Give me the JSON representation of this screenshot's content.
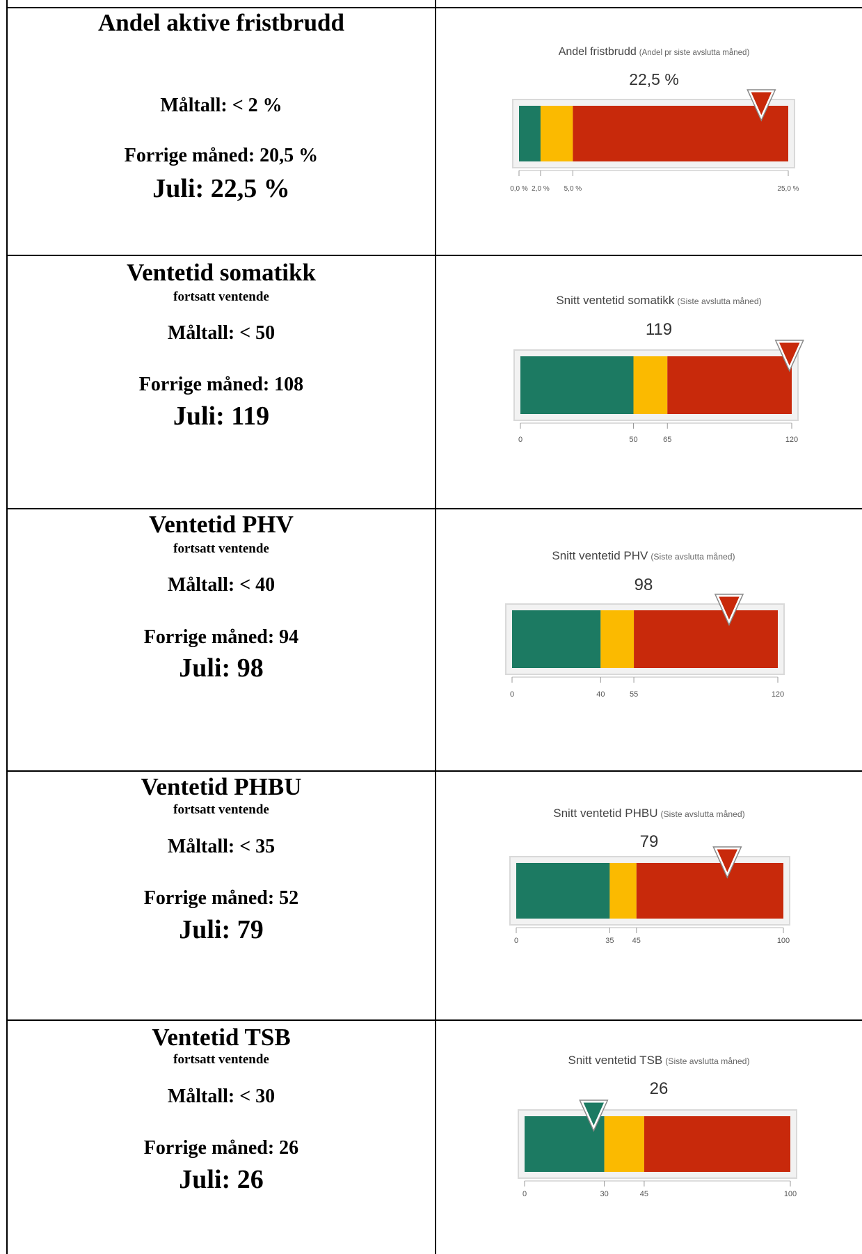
{
  "colors": {
    "green": "#1c7a62",
    "yellow": "#fbba00",
    "red": "#c8290b",
    "frame": "#d9d9d9",
    "axis": "#555555"
  },
  "panels": [
    {
      "left": {
        "title": "Andel aktive fristbrudd",
        "subtitle": "",
        "target": "Måltall: < 2 %",
        "previous": "Forrige måned: 20,5 %",
        "current": "Juli: 22,5 %"
      },
      "chart_data": {
        "type": "bullet-gauge",
        "title": "Andel fristbrudd",
        "subtitle": "(Andel pr siste avslutta måned)",
        "value": 22.5,
        "value_label": "22,5 %",
        "range": [
          0,
          25
        ],
        "bands": [
          {
            "from": 0,
            "to": 2,
            "color": "green"
          },
          {
            "from": 2,
            "to": 5,
            "color": "yellow"
          },
          {
            "from": 5,
            "to": 25,
            "color": "red"
          }
        ],
        "ticks": [
          {
            "value": 0,
            "label": "0,0 %"
          },
          {
            "value": 2,
            "label": "2,0 %"
          },
          {
            "value": 5,
            "label": "5,0 %"
          },
          {
            "value": 25,
            "label": "25,0 %"
          }
        ],
        "marker_color": "red"
      }
    },
    {
      "left": {
        "title": "Ventetid somatikk",
        "subtitle": "fortsatt ventende",
        "target": "Måltall: < 50",
        "previous": "Forrige måned: 108",
        "current": "Juli: 119"
      },
      "chart_data": {
        "type": "bullet-gauge",
        "title": "Snitt ventetid somatikk",
        "subtitle": "(Siste avslutta måned)",
        "value": 119,
        "value_label": "119",
        "range": [
          0,
          120
        ],
        "bands": [
          {
            "from": 0,
            "to": 50,
            "color": "green"
          },
          {
            "from": 50,
            "to": 65,
            "color": "yellow"
          },
          {
            "from": 65,
            "to": 120,
            "color": "red"
          }
        ],
        "ticks": [
          {
            "value": 0,
            "label": "0"
          },
          {
            "value": 50,
            "label": "50"
          },
          {
            "value": 65,
            "label": "65"
          },
          {
            "value": 120,
            "label": "120"
          }
        ],
        "marker_color": "red"
      }
    },
    {
      "left": {
        "title": "Ventetid PHV",
        "subtitle": "fortsatt ventende",
        "target": "Måltall: < 40",
        "previous": "Forrige måned: 94",
        "current": "Juli: 98"
      },
      "chart_data": {
        "type": "bullet-gauge",
        "title": "Snitt ventetid PHV",
        "subtitle": "(Siste avslutta måned)",
        "value": 98,
        "value_label": "98",
        "range": [
          0,
          120
        ],
        "bands": [
          {
            "from": 0,
            "to": 40,
            "color": "green"
          },
          {
            "from": 40,
            "to": 55,
            "color": "yellow"
          },
          {
            "from": 55,
            "to": 120,
            "color": "red"
          }
        ],
        "ticks": [
          {
            "value": 0,
            "label": "0"
          },
          {
            "value": 40,
            "label": "40"
          },
          {
            "value": 55,
            "label": "55"
          },
          {
            "value": 120,
            "label": "120"
          }
        ],
        "marker_color": "red"
      }
    },
    {
      "left": {
        "title": "Ventetid PHBU",
        "subtitle": "fortsatt ventende",
        "target": "Måltall: < 35",
        "previous": "Forrige måned: 52",
        "current": "Juli: 79"
      },
      "chart_data": {
        "type": "bullet-gauge",
        "title": "Snitt ventetid PHBU",
        "subtitle": "(Siste avslutta måned)",
        "value": 79,
        "value_label": "79",
        "range": [
          0,
          100
        ],
        "bands": [
          {
            "from": 0,
            "to": 35,
            "color": "green"
          },
          {
            "from": 35,
            "to": 45,
            "color": "yellow"
          },
          {
            "from": 45,
            "to": 100,
            "color": "red"
          }
        ],
        "ticks": [
          {
            "value": 0,
            "label": "0"
          },
          {
            "value": 35,
            "label": "35"
          },
          {
            "value": 45,
            "label": "45"
          },
          {
            "value": 100,
            "label": "100"
          }
        ],
        "marker_color": "red"
      }
    },
    {
      "left": {
        "title": "Ventetid TSB",
        "subtitle": "fortsatt ventende",
        "target": "Måltall: < 30",
        "previous": "Forrige måned: 26",
        "current": "Juli: 26"
      },
      "chart_data": {
        "type": "bullet-gauge",
        "title": "Snitt ventetid TSB",
        "subtitle": "(Siste avslutta måned)",
        "value": 26,
        "value_label": "26",
        "range": [
          0,
          100
        ],
        "bands": [
          {
            "from": 0,
            "to": 30,
            "color": "green"
          },
          {
            "from": 30,
            "to": 45,
            "color": "yellow"
          },
          {
            "from": 45,
            "to": 100,
            "color": "red"
          }
        ],
        "ticks": [
          {
            "value": 0,
            "label": "0"
          },
          {
            "value": 30,
            "label": "30"
          },
          {
            "value": 45,
            "label": "45"
          },
          {
            "value": 100,
            "label": "100"
          }
        ],
        "marker_color": "green"
      }
    }
  ]
}
